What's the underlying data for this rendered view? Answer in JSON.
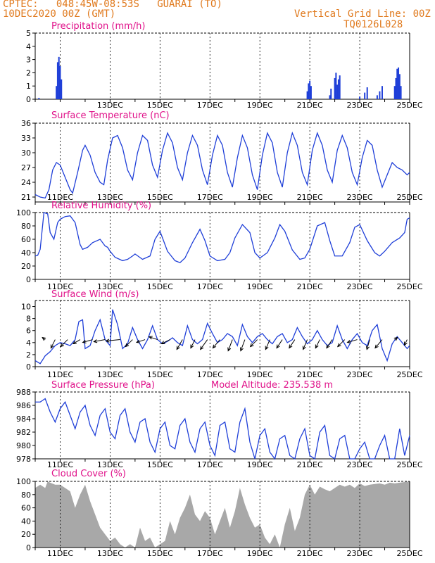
{
  "header": {
    "source": "CPTEC:",
    "coords": "048:45W-08:53S",
    "location": "GUARAI (TO)",
    "date": "10DEC2020 00Z (GMT)",
    "grid_note": "Vertical Grid Line: 00Z",
    "code": "TQ0126L028"
  },
  "model_altitude": "Model Altitude: 235.538 m",
  "colors": {
    "header": "#e07a1e",
    "title": "#e0128a",
    "line": "#1f3fd8",
    "cloud": "#a8a8a8",
    "arrow": "#000000"
  },
  "chart_data": [
    {
      "type": "bar",
      "title": "Precipitation (mm/h)",
      "ylim": [
        0,
        5
      ],
      "yticks": [
        "0",
        "1",
        "2",
        "3",
        "4",
        "5"
      ],
      "xticks": [
        "13DEC",
        "15DEC",
        "17DEC",
        "19DEC",
        "21DEC",
        "23DEC",
        "25DEC"
      ],
      "xlim_days": [
        10,
        25
      ],
      "bars": [
        {
          "x": 10.15,
          "y": 0.1
        },
        {
          "x": 10.85,
          "y": 1.0
        },
        {
          "x": 10.9,
          "y": 2.8
        },
        {
          "x": 10.95,
          "y": 3.2
        },
        {
          "x": 11.0,
          "y": 2.5
        },
        {
          "x": 11.05,
          "y": 1.5
        },
        {
          "x": 20.9,
          "y": 0.6
        },
        {
          "x": 20.95,
          "y": 1.2
        },
        {
          "x": 21.0,
          "y": 1.4
        },
        {
          "x": 21.05,
          "y": 1.0
        },
        {
          "x": 21.8,
          "y": 0.3
        },
        {
          "x": 21.85,
          "y": 0.8
        },
        {
          "x": 22.0,
          "y": 1.6
        },
        {
          "x": 22.05,
          "y": 2.0
        },
        {
          "x": 22.1,
          "y": 1.1
        },
        {
          "x": 22.15,
          "y": 1.5
        },
        {
          "x": 22.2,
          "y": 1.8
        },
        {
          "x": 23.0,
          "y": 0.2
        },
        {
          "x": 23.2,
          "y": 0.5
        },
        {
          "x": 23.3,
          "y": 0.9
        },
        {
          "x": 23.7,
          "y": 0.3
        },
        {
          "x": 23.8,
          "y": 0.6
        },
        {
          "x": 23.9,
          "y": 1.0
        },
        {
          "x": 24.4,
          "y": 1.0
        },
        {
          "x": 24.45,
          "y": 1.6
        },
        {
          "x": 24.5,
          "y": 2.3
        },
        {
          "x": 24.55,
          "y": 2.4
        },
        {
          "x": 24.6,
          "y": 1.9
        },
        {
          "x": 24.65,
          "y": 1.0
        }
      ]
    },
    {
      "type": "line",
      "title": "Surface Temperature (nC)",
      "ylim": [
        20,
        36
      ],
      "yticks": [
        "21",
        "24",
        "27",
        "30",
        "33",
        "36"
      ],
      "xticks": [
        "11DEC",
        "13DEC",
        "15DEC",
        "17DEC",
        "19DEC",
        "21DEC",
        "23DEC",
        "25DEC"
      ],
      "xlim_days": [
        10,
        25
      ],
      "x": [
        10.0,
        10.2,
        10.4,
        10.55,
        10.7,
        10.85,
        11.0,
        11.2,
        11.4,
        11.5,
        11.7,
        11.9,
        12.0,
        12.2,
        12.4,
        12.6,
        12.75,
        12.9,
        13.1,
        13.3,
        13.5,
        13.7,
        13.9,
        14.1,
        14.3,
        14.5,
        14.7,
        14.9,
        15.1,
        15.3,
        15.5,
        15.7,
        15.9,
        16.1,
        16.3,
        16.5,
        16.7,
        16.9,
        17.1,
        17.3,
        17.5,
        17.7,
        17.9,
        18.1,
        18.3,
        18.5,
        18.7,
        18.9,
        19.1,
        19.3,
        19.5,
        19.7,
        19.9,
        20.1,
        20.3,
        20.5,
        20.7,
        20.9,
        21.1,
        21.3,
        21.5,
        21.7,
        21.9,
        22.1,
        22.3,
        22.5,
        22.7,
        22.9,
        23.1,
        23.3,
        23.5,
        23.7,
        23.9,
        24.1,
        24.3,
        24.5,
        24.7,
        24.9,
        25.0
      ],
      "y": [
        21.5,
        21.0,
        20.8,
        22.5,
        26.5,
        28.0,
        27.5,
        25.0,
        22.5,
        21.8,
        26.0,
        30.5,
        31.5,
        29.5,
        26.0,
        24.0,
        23.5,
        28.5,
        33.0,
        33.5,
        31.0,
        26.5,
        24.5,
        30.0,
        33.5,
        32.5,
        27.5,
        25.0,
        30.5,
        34.0,
        32.0,
        27.0,
        24.5,
        30.0,
        33.5,
        31.5,
        26.5,
        23.5,
        29.5,
        33.5,
        31.5,
        26.0,
        23.0,
        29.0,
        33.5,
        31.0,
        25.5,
        22.5,
        29.5,
        34.0,
        32.0,
        26.0,
        23.0,
        30.0,
        34.0,
        31.5,
        26.0,
        23.5,
        30.5,
        34.0,
        31.5,
        26.5,
        24.0,
        30.5,
        33.5,
        31.0,
        26.0,
        23.5,
        29.0,
        32.5,
        31.5,
        26.5,
        23.0,
        25.5,
        28.0,
        27.0,
        26.5,
        25.5,
        26.0
      ]
    },
    {
      "type": "line",
      "title": "Relative Humidity (%)",
      "ylim": [
        0,
        100
      ],
      "yticks": [
        "0",
        "20",
        "40",
        "60",
        "80",
        "100"
      ],
      "xticks": [
        "11DEC",
        "13DEC",
        "15DEC",
        "17DEC",
        "19DEC",
        "21DEC",
        "23DEC",
        "25DEC"
      ],
      "xlim_days": [
        10,
        25
      ],
      "x": [
        10.0,
        10.1,
        10.2,
        10.35,
        10.5,
        10.6,
        10.75,
        10.9,
        11.0,
        11.2,
        11.4,
        11.6,
        11.8,
        11.9,
        12.1,
        12.3,
        12.6,
        12.8,
        12.9,
        13.0,
        13.2,
        13.5,
        13.7,
        13.9,
        14.0,
        14.3,
        14.6,
        14.8,
        15.0,
        15.3,
        15.6,
        15.8,
        16.0,
        16.3,
        16.6,
        16.8,
        17.0,
        17.3,
        17.6,
        17.8,
        18.0,
        18.3,
        18.6,
        18.8,
        19.0,
        19.3,
        19.6,
        19.8,
        20.0,
        20.3,
        20.6,
        20.8,
        21.0,
        21.3,
        21.6,
        21.8,
        22.0,
        22.3,
        22.6,
        22.8,
        23.0,
        23.3,
        23.6,
        23.8,
        24.0,
        24.3,
        24.6,
        24.8,
        24.9,
        25.0
      ],
      "y": [
        35,
        36,
        45,
        100,
        98,
        70,
        60,
        85,
        90,
        94,
        95,
        85,
        52,
        45,
        48,
        55,
        60,
        50,
        48,
        42,
        33,
        28,
        30,
        35,
        38,
        30,
        35,
        60,
        72,
        42,
        28,
        25,
        32,
        55,
        75,
        58,
        35,
        28,
        30,
        40,
        62,
        82,
        70,
        40,
        32,
        40,
        62,
        82,
        72,
        44,
        30,
        32,
        45,
        80,
        85,
        58,
        35,
        35,
        55,
        78,
        82,
        58,
        40,
        35,
        42,
        55,
        62,
        70,
        90,
        92
      ]
    },
    {
      "type": "line",
      "title": "Surface Wind (m/s)",
      "ylim": [
        0,
        11
      ],
      "yticks": [
        "0",
        "2",
        "4",
        "6",
        "8",
        "10"
      ],
      "xticks": [
        "11DEC",
        "13DEC",
        "15DEC",
        "17DEC",
        "19DEC",
        "21DEC",
        "23DEC",
        "25DEC"
      ],
      "xlim_days": [
        10,
        25
      ],
      "x": [
        10.0,
        10.2,
        10.4,
        10.6,
        10.8,
        11.0,
        11.2,
        11.4,
        11.6,
        11.75,
        11.9,
        12.0,
        12.2,
        12.4,
        12.6,
        12.8,
        13.0,
        13.1,
        13.3,
        13.5,
        13.7,
        13.9,
        14.1,
        14.3,
        14.5,
        14.7,
        14.9,
        15.1,
        15.3,
        15.5,
        15.7,
        15.9,
        16.1,
        16.3,
        16.5,
        16.7,
        16.9,
        17.1,
        17.3,
        17.5,
        17.7,
        17.9,
        18.1,
        18.3,
        18.5,
        18.7,
        18.9,
        19.1,
        19.3,
        19.5,
        19.7,
        19.9,
        20.1,
        20.3,
        20.5,
        20.7,
        20.9,
        21.1,
        21.3,
        21.5,
        21.7,
        21.9,
        22.1,
        22.3,
        22.5,
        22.7,
        22.9,
        23.1,
        23.3,
        23.5,
        23.7,
        23.9,
        24.1,
        24.3,
        24.5,
        24.7,
        24.9,
        25.0
      ],
      "y": [
        1.0,
        0.5,
        1.8,
        2.5,
        3.5,
        4.0,
        3.8,
        3.5,
        4.5,
        7.5,
        7.8,
        3.0,
        3.5,
        6.0,
        7.8,
        4.5,
        3.5,
        9.5,
        7.0,
        3.0,
        3.8,
        6.5,
        4.5,
        3.0,
        4.5,
        6.8,
        4.5,
        3.8,
        4.2,
        4.8,
        4.0,
        3.5,
        6.8,
        4.5,
        3.8,
        4.5,
        7.2,
        5.5,
        4.0,
        4.5,
        5.5,
        5.0,
        3.5,
        7.0,
        5.0,
        4.0,
        5.0,
        5.5,
        4.5,
        3.8,
        5.0,
        5.5,
        4.0,
        4.5,
        6.5,
        5.0,
        3.8,
        4.5,
        6.0,
        4.5,
        3.5,
        4.0,
        6.8,
        4.5,
        3.0,
        4.5,
        5.5,
        4.0,
        3.5,
        6.0,
        7.0,
        3.0,
        1.0,
        3.8,
        5.0,
        4.0,
        3.0,
        3.5
      ],
      "arrows": [
        {
          "x": 10.4,
          "dx": -4,
          "dy": -3
        },
        {
          "x": 10.8,
          "dx": -6,
          "dy": 12
        },
        {
          "x": 11.3,
          "dx": -10,
          "dy": 10
        },
        {
          "x": 11.8,
          "dx": -10,
          "dy": 6
        },
        {
          "x": 12.3,
          "dx": -14,
          "dy": 4
        },
        {
          "x": 12.8,
          "dx": -16,
          "dy": 3
        },
        {
          "x": 13.4,
          "dx": -20,
          "dy": 2
        },
        {
          "x": 13.9,
          "dx": -10,
          "dy": 10
        },
        {
          "x": 14.4,
          "dx": -12,
          "dy": 4
        },
        {
          "x": 14.9,
          "dx": -12,
          "dy": -4
        },
        {
          "x": 15.4,
          "dx": -12,
          "dy": 6
        },
        {
          "x": 15.9,
          "dx": -8,
          "dy": 14
        },
        {
          "x": 16.4,
          "dx": -6,
          "dy": 12
        },
        {
          "x": 16.9,
          "dx": -10,
          "dy": 14
        },
        {
          "x": 17.4,
          "dx": -10,
          "dy": 12
        },
        {
          "x": 17.9,
          "dx": -6,
          "dy": 16
        },
        {
          "x": 18.4,
          "dx": -6,
          "dy": 16
        },
        {
          "x": 18.9,
          "dx": -10,
          "dy": 10
        },
        {
          "x": 19.4,
          "dx": -6,
          "dy": 14
        },
        {
          "x": 19.9,
          "dx": -8,
          "dy": 12
        },
        {
          "x": 20.4,
          "dx": -8,
          "dy": 12
        },
        {
          "x": 20.9,
          "dx": -6,
          "dy": 14
        },
        {
          "x": 21.4,
          "dx": -6,
          "dy": 12
        },
        {
          "x": 21.9,
          "dx": -8,
          "dy": 12
        },
        {
          "x": 22.4,
          "dx": -10,
          "dy": 10
        },
        {
          "x": 22.9,
          "dx": -14,
          "dy": 4
        },
        {
          "x": 23.4,
          "dx": -4,
          "dy": 14
        },
        {
          "x": 23.9,
          "dx": -10,
          "dy": 12
        },
        {
          "x": 24.4,
          "dx": 4,
          "dy": -3
        },
        {
          "x": 24.9,
          "dx": -4,
          "dy": 8
        }
      ]
    },
    {
      "type": "line",
      "title": "Surface Pressure (hPa)",
      "ylim": [
        978,
        988
      ],
      "yticks": [
        "978",
        "980",
        "982",
        "984",
        "986",
        "988"
      ],
      "xticks": [
        "11DEC",
        "13DEC",
        "15DEC",
        "17DEC",
        "19DEC",
        "21DEC",
        "23DEC",
        "25DEC"
      ],
      "xlim_days": [
        10,
        25
      ],
      "x": [
        10.0,
        10.2,
        10.4,
        10.6,
        10.8,
        11.0,
        11.2,
        11.4,
        11.6,
        11.8,
        12.0,
        12.2,
        12.4,
        12.6,
        12.8,
        13.0,
        13.2,
        13.4,
        13.6,
        13.8,
        14.0,
        14.2,
        14.4,
        14.6,
        14.8,
        15.0,
        15.2,
        15.4,
        15.6,
        15.8,
        16.0,
        16.2,
        16.4,
        16.6,
        16.8,
        17.0,
        17.2,
        17.4,
        17.6,
        17.8,
        18.0,
        18.2,
        18.4,
        18.6,
        18.8,
        19.0,
        19.2,
        19.4,
        19.6,
        19.8,
        20.0,
        20.2,
        20.4,
        20.6,
        20.8,
        21.0,
        21.2,
        21.4,
        21.6,
        21.8,
        22.0,
        22.2,
        22.4,
        22.6,
        22.8,
        23.0,
        23.2,
        23.4,
        23.6,
        23.8,
        24.0,
        24.2,
        24.4,
        24.6,
        24.8,
        25.0
      ],
      "y": [
        986.5,
        986.5,
        987.0,
        985.0,
        983.5,
        985.5,
        986.5,
        984.5,
        982.5,
        985.0,
        986.0,
        983.0,
        981.5,
        984.5,
        985.5,
        982.0,
        981.0,
        984.5,
        985.5,
        982.0,
        980.5,
        983.5,
        984.0,
        980.5,
        979.0,
        982.5,
        983.5,
        980.0,
        979.5,
        983.0,
        984.0,
        980.5,
        979.0,
        982.5,
        983.5,
        980.0,
        978.5,
        983.0,
        983.5,
        979.5,
        979.0,
        983.5,
        985.5,
        980.5,
        978.0,
        981.5,
        982.5,
        979.0,
        977.5,
        981.0,
        981.5,
        978.5,
        978.0,
        981.0,
        982.5,
        978.5,
        977.0,
        982.0,
        983.0,
        978.5,
        976.5,
        981.0,
        981.5,
        977.5,
        976.0,
        979.5,
        980.5,
        977.0,
        976.5,
        980.0,
        981.5,
        978.0,
        977.5,
        982.5,
        978.5,
        981.5
      ]
    },
    {
      "type": "area",
      "title": "Cloud Cover (%)",
      "ylim": [
        0,
        100
      ],
      "yticks": [
        "0",
        "20",
        "40",
        "60",
        "80",
        "100"
      ],
      "xticks": [
        "11DEC",
        "13DEC",
        "15DEC",
        "17DEC",
        "19DEC",
        "21DEC",
        "23DEC",
        "25DEC"
      ],
      "xlim_days": [
        10,
        25
      ],
      "x": [
        10.0,
        10.2,
        10.4,
        10.5,
        10.6,
        10.8,
        11.0,
        11.2,
        11.4,
        11.6,
        11.8,
        12.0,
        12.2,
        12.4,
        12.6,
        12.8,
        13.0,
        13.2,
        13.4,
        13.6,
        13.8,
        14.0,
        14.2,
        14.4,
        14.6,
        14.8,
        15.0,
        15.2,
        15.4,
        15.6,
        15.8,
        16.0,
        16.2,
        16.4,
        16.6,
        16.8,
        17.0,
        17.2,
        17.4,
        17.6,
        17.8,
        18.0,
        18.2,
        18.4,
        18.6,
        18.8,
        19.0,
        19.2,
        19.4,
        19.6,
        19.8,
        20.0,
        20.2,
        20.4,
        20.6,
        20.8,
        21.0,
        21.2,
        21.4,
        21.6,
        21.8,
        22.0,
        22.2,
        22.4,
        22.6,
        22.8,
        23.0,
        23.2,
        23.4,
        23.6,
        23.8,
        24.0,
        24.2,
        24.4,
        24.6,
        24.8,
        25.0
      ],
      "y": [
        90,
        95,
        90,
        100,
        98,
        95,
        95,
        90,
        85,
        60,
        80,
        95,
        70,
        50,
        30,
        20,
        10,
        15,
        5,
        0,
        5,
        0,
        30,
        10,
        15,
        0,
        5,
        10,
        40,
        20,
        45,
        60,
        80,
        50,
        40,
        55,
        45,
        20,
        40,
        60,
        30,
        55,
        90,
        65,
        45,
        30,
        35,
        15,
        5,
        20,
        0,
        35,
        60,
        25,
        45,
        80,
        95,
        80,
        92,
        88,
        85,
        90,
        95,
        92,
        95,
        90,
        97,
        93,
        95,
        96,
        97,
        95,
        98,
        97,
        98,
        99,
        100
      ]
    }
  ]
}
